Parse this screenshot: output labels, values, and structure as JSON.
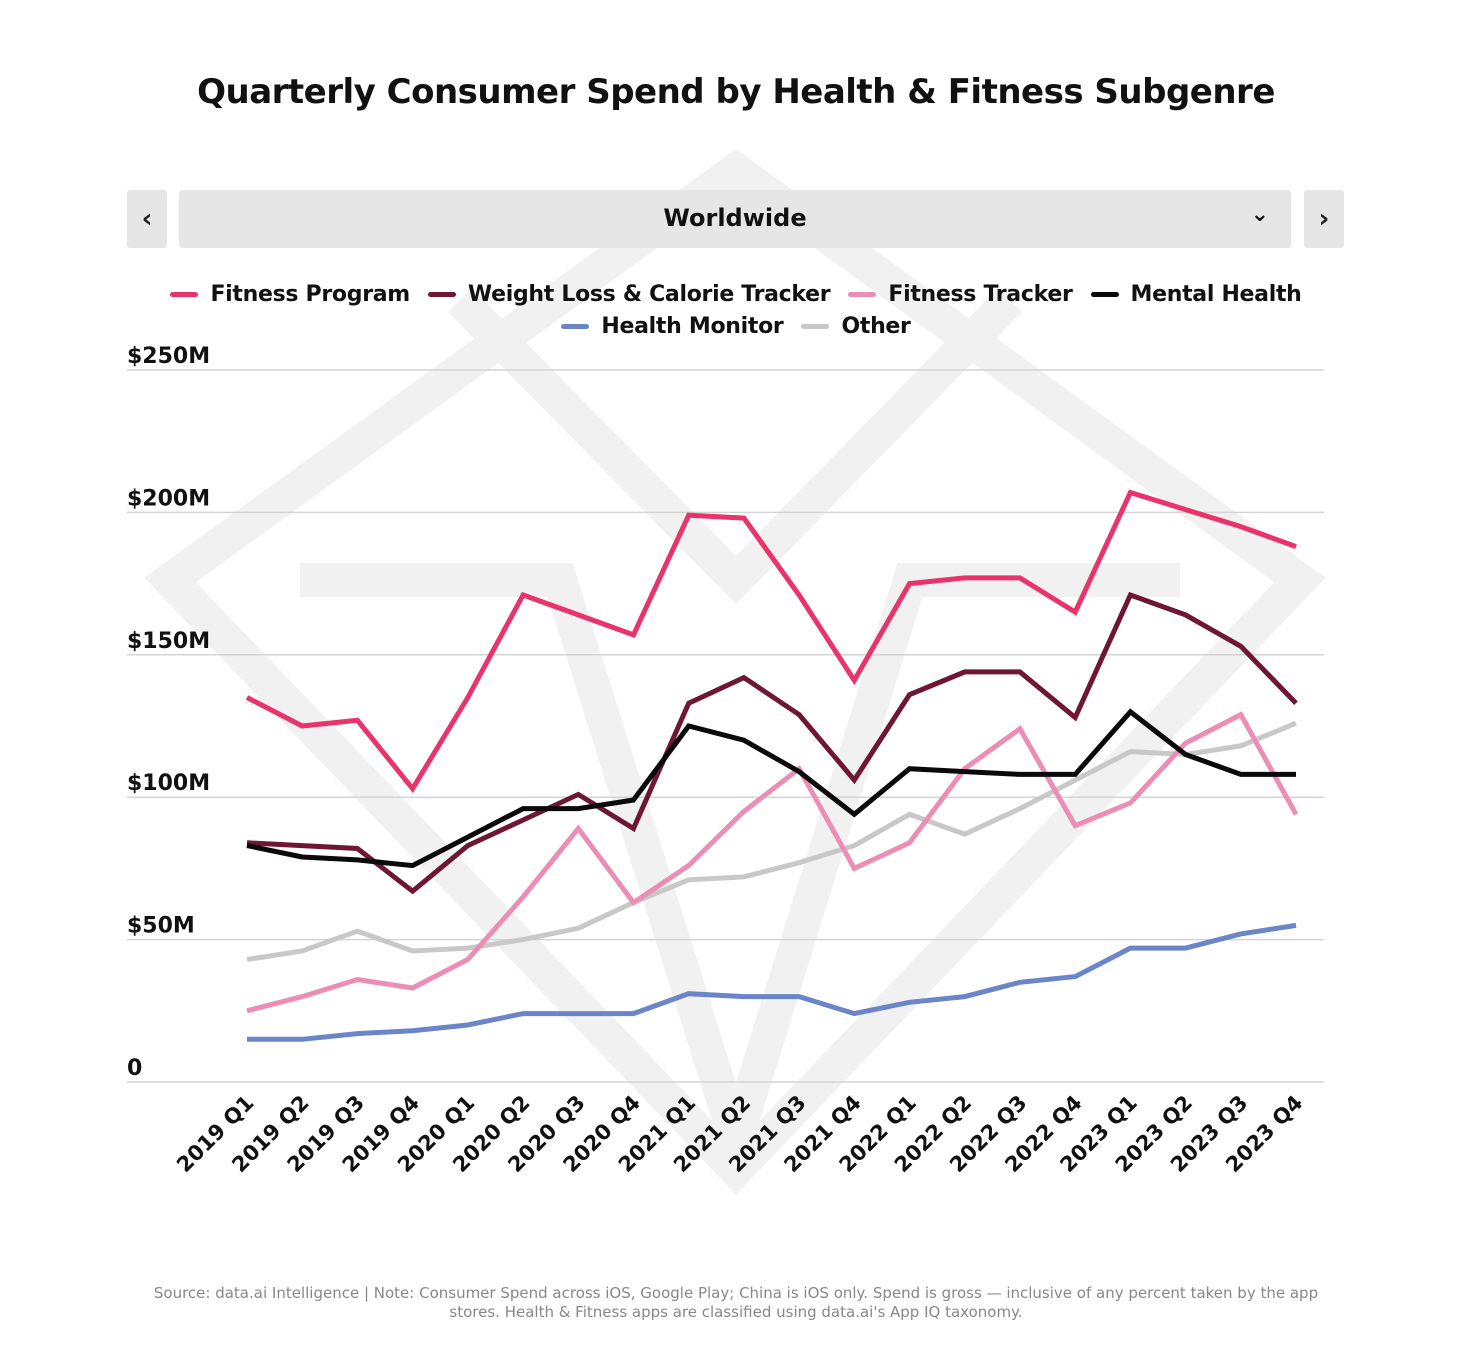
{
  "nav": {
    "prev_icon": "chevron-left-icon",
    "next_icon": "chevron-right-icon",
    "prev_glyph": "‹",
    "next_glyph": "›"
  },
  "region": {
    "selected": "Worldwide",
    "dropdown_icon": "chevron-down-icon",
    "dropdown_glyph": "⌄"
  },
  "footer": {
    "note": "Source: data.ai Intelligence | Note: Consumer Spend across iOS, Google Play; China is iOS only. Spend is gross — inclusive of any percent taken by the app stores. Health & Fitness apps are classified using data.ai's App IQ taxonomy."
  },
  "chart_data": {
    "type": "line",
    "title": "Quarterly Consumer Spend by Health & Fitness Subgenre",
    "xlabel": "",
    "ylabel": "",
    "ylim": [
      0,
      250
    ],
    "yticks": [
      0,
      50,
      100,
      150,
      200,
      250
    ],
    "ytick_labels": [
      "0",
      "$50M",
      "$100M",
      "$150M",
      "$200M",
      "$250M"
    ],
    "grid": true,
    "legend_position": "top-center",
    "categories": [
      "2019 Q1",
      "2019 Q2",
      "2019 Q3",
      "2019 Q4",
      "2020 Q1",
      "2020 Q2",
      "2020 Q3",
      "2020 Q4",
      "2021 Q1",
      "2021 Q2",
      "2021 Q3",
      "2021 Q4",
      "2022 Q1",
      "2022 Q2",
      "2022 Q3",
      "2022 Q4",
      "2023 Q1",
      "2023 Q2",
      "2023 Q3",
      "2023 Q4"
    ],
    "series": [
      {
        "name": "Fitness Program",
        "color": "#e8336b",
        "values": [
          135,
          125,
          127,
          103,
          135,
          171,
          164,
          157,
          199,
          198,
          171,
          141,
          175,
          177,
          177,
          165,
          207,
          201,
          195,
          188
        ]
      },
      {
        "name": "Weight Loss & Calorie Tracker",
        "color": "#6e1633",
        "values": [
          84,
          83,
          82,
          67,
          83,
          92,
          101,
          89,
          133,
          142,
          129,
          106,
          136,
          144,
          144,
          128,
          171,
          164,
          153,
          133
        ]
      },
      {
        "name": "Fitness Tracker",
        "color": "#eb8db4",
        "values": [
          25,
          30,
          36,
          33,
          43,
          65,
          89,
          63,
          76,
          95,
          110,
          75,
          84,
          110,
          124,
          90,
          98,
          119,
          129,
          94
        ]
      },
      {
        "name": "Mental Health",
        "color": "#0a0a0a",
        "values": [
          83,
          79,
          78,
          76,
          86,
          96,
          96,
          99,
          125,
          120,
          109,
          94,
          110,
          109,
          108,
          108,
          130,
          115,
          108,
          108
        ]
      },
      {
        "name": "Health Monitor",
        "color": "#6a86c8",
        "values": [
          15,
          15,
          17,
          18,
          20,
          24,
          24,
          24,
          31,
          30,
          30,
          24,
          28,
          30,
          35,
          37,
          47,
          47,
          52,
          55
        ]
      },
      {
        "name": "Other",
        "color": "#c8c8c8",
        "values": [
          43,
          46,
          53,
          46,
          47,
          50,
          54,
          63,
          71,
          72,
          77,
          83,
          94,
          87,
          96,
          106,
          116,
          115,
          118,
          126
        ]
      }
    ]
  }
}
